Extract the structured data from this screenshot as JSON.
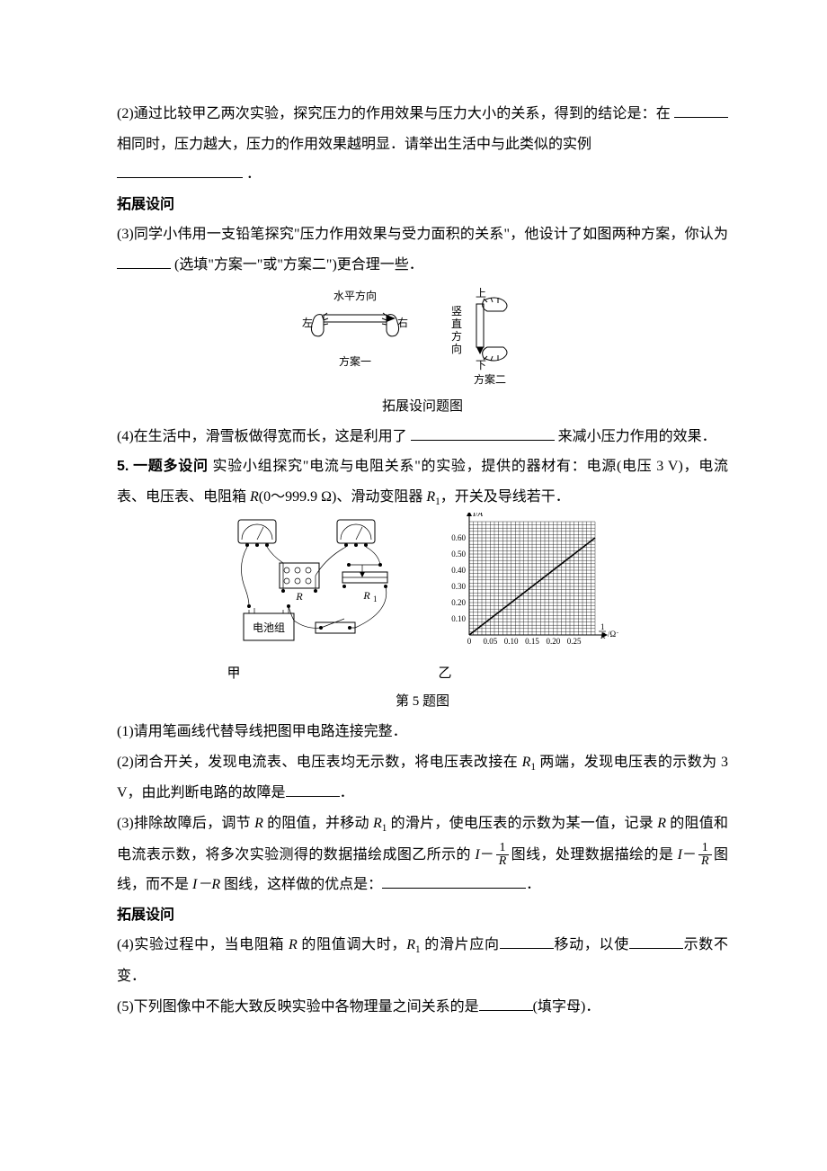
{
  "q4": {
    "p2_a": "(2)通过比较甲乙两次实验，探究压力的作用效果与压力大小的关系，得到的结论是：在",
    "p2_b": "相同时，压力越大，压力的作用效果越明显．请举出生活中与此类似的实例",
    "p2_c": "．",
    "ext_heading": "拓展设问",
    "p3_a": "(3)同学小伟用一支铅笔探究\"压力作用效果与受力面积的关系\"，他设计了如图两种方案，你认为",
    "p3_b": "(选填\"方案一\"或\"方案二\")更合理一些．",
    "fig_labels": {
      "horizontal": "水平方向",
      "left": "左",
      "right": "右",
      "vertical_up": "上",
      "vertical": "竖直方向",
      "vertical_down": "下",
      "plan1": "方案一",
      "plan2": "方案二",
      "caption": "拓展设问题图"
    },
    "p4_a": "(4)在生活中，滑雪板做得宽而长，这是利用了",
    "p4_b": "来减小压力作用的效果．"
  },
  "q5": {
    "num": "5.",
    "lead_a": " 一题多设问",
    "lead_b": " 实验小组探究\"电流与电阻关系\"的实验，提供的器材有：电源(电压 3 V)，电流表、电压表、电阻箱 ",
    "lead_c": "(0～999.9 Ω)、滑动变阻器 ",
    "lead_d": "，开关及导线若干．",
    "R": "R",
    "R1": "R",
    "R1_sub": "1",
    "chart": {
      "ylabel": "I/A",
      "xlabel_a": "1",
      "xlabel_b": "R",
      "xlabel_unit": "/Ω⁻¹",
      "yticks": [
        "0.10",
        "0.20",
        "0.30",
        "0.40",
        "0.50",
        "0.60"
      ],
      "xticks": [
        "0",
        "0.05",
        "0.10",
        "0.15",
        "0.20",
        "0.25"
      ],
      "xlim": [
        0,
        0.3
      ],
      "ylim": [
        0,
        0.7
      ],
      "line_points": [
        [
          0,
          0
        ],
        [
          0.3,
          0.6
        ]
      ],
      "grid_color": "#000000",
      "line_color": "#000000",
      "bg": "#ffffff"
    },
    "labels": {
      "jia": "甲",
      "yi": "乙",
      "caption": "第 5 题图",
      "battery": "电池组"
    },
    "p1": "(1)请用笔画线代替导线把图甲电路连接完整．",
    "p2_a": "(2)闭合开关，发现电流表、电压表均无示数，将电压表改接在 ",
    "p2_b": " 两端，发现电压表的示数为 3 V，由此判断电路的故障是",
    "p2_c": "．",
    "p3_a": "(3)排除故障后，调节 ",
    "p3_b": " 的阻值，并移动 ",
    "p3_c": " 的滑片，使电压表的示数为某一值，记录 ",
    "p3_d": " 的阻值和电流表示数，将多次实验测得的数据描绘成图乙所示的 ",
    "p3_e": "图线，处理数据描绘的是 ",
    "p3_f": "图线，而不是 ",
    "p3_g": " 图线，这样做的优点是：",
    "p3_h": "．",
    "I": "I",
    "IR": "I－R",
    "ext_heading": "拓展设问",
    "p4_a": "(4)实验过程中，当电阻箱 ",
    "p4_b": " 的阻值调大时，",
    "p4_c": " 的滑片应向",
    "p4_d": "移动，以使",
    "p4_e": "示数不变．",
    "p5_a": "(5)下列图像中不能大致反映实验中各物理量之间关系的是",
    "p5_b": "(填字母)．"
  }
}
